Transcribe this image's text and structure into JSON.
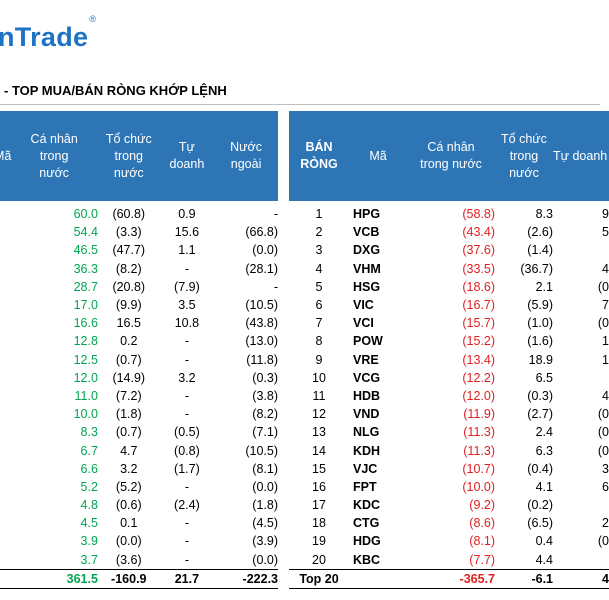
{
  "brand": {
    "logo_text": "nTrade",
    "registered_mark": "®"
  },
  "report_title": "- TOP MUA/BÁN RÒNG KHỚP LỆNH",
  "columns": {
    "ma": "Mã",
    "ca_nhan": [
      "Cá nhân",
      "trong",
      "nước"
    ],
    "ca_nhan_right": [
      "Cá nhân",
      "trong nước"
    ],
    "to_chuc": [
      "Tổ chức",
      "trong",
      "nước"
    ],
    "tu_doanh": [
      "Tự",
      "doanh"
    ],
    "tu_doanh_right": "Tự doanh",
    "nuoc_ngoai": [
      "Nước",
      "ngoài"
    ],
    "ban_rong": [
      "BÁN",
      "RÒNG"
    ]
  },
  "buy_rows": [
    {
      "ca_nhan": "60.0",
      "to_chuc": "(60.8)",
      "tu_doanh": "0.9",
      "nuoc_ngoai": "-"
    },
    {
      "ca_nhan": "54.4",
      "to_chuc": "(3.3)",
      "tu_doanh": "15.6",
      "nuoc_ngoai": "(66.8)"
    },
    {
      "ca_nhan": "46.5",
      "to_chuc": "(47.7)",
      "tu_doanh": "1.1",
      "nuoc_ngoai": "(0.0)"
    },
    {
      "ca_nhan": "36.3",
      "to_chuc": "(8.2)",
      "tu_doanh": "-",
      "nuoc_ngoai": "(28.1)"
    },
    {
      "ca_nhan": "28.7",
      "to_chuc": "(20.8)",
      "tu_doanh": "(7.9)",
      "nuoc_ngoai": "-"
    },
    {
      "ca_nhan": "17.0",
      "to_chuc": "(9.9)",
      "tu_doanh": "3.5",
      "nuoc_ngoai": "(10.5)"
    },
    {
      "ca_nhan": "16.6",
      "to_chuc": "16.5",
      "tu_doanh": "10.8",
      "nuoc_ngoai": "(43.8)"
    },
    {
      "ca_nhan": "12.8",
      "to_chuc": "0.2",
      "tu_doanh": "-",
      "nuoc_ngoai": "(13.0)"
    },
    {
      "ca_nhan": "12.5",
      "to_chuc": "(0.7)",
      "tu_doanh": "-",
      "nuoc_ngoai": "(11.8)"
    },
    {
      "ca_nhan": "12.0",
      "to_chuc": "(14.9)",
      "tu_doanh": "3.2",
      "nuoc_ngoai": "(0.3)"
    },
    {
      "ca_nhan": "11.0",
      "to_chuc": "(7.2)",
      "tu_doanh": "-",
      "nuoc_ngoai": "(3.8)"
    },
    {
      "ca_nhan": "10.0",
      "to_chuc": "(1.8)",
      "tu_doanh": "-",
      "nuoc_ngoai": "(8.2)"
    },
    {
      "ca_nhan": "8.3",
      "to_chuc": "(0.7)",
      "tu_doanh": "(0.5)",
      "nuoc_ngoai": "(7.1)"
    },
    {
      "ca_nhan": "6.7",
      "to_chuc": "4.7",
      "tu_doanh": "(0.8)",
      "nuoc_ngoai": "(10.5)"
    },
    {
      "ca_nhan": "6.6",
      "to_chuc": "3.2",
      "tu_doanh": "(1.7)",
      "nuoc_ngoai": "(8.1)"
    },
    {
      "ca_nhan": "5.2",
      "to_chuc": "(5.2)",
      "tu_doanh": "-",
      "nuoc_ngoai": "(0.0)"
    },
    {
      "ca_nhan": "4.8",
      "to_chuc": "(0.6)",
      "tu_doanh": "(2.4)",
      "nuoc_ngoai": "(1.8)"
    },
    {
      "ca_nhan": "4.5",
      "to_chuc": "0.1",
      "tu_doanh": "-",
      "nuoc_ngoai": "(4.5)"
    },
    {
      "ca_nhan": "3.9",
      "to_chuc": "(0.0)",
      "tu_doanh": "-",
      "nuoc_ngoai": "(3.9)"
    },
    {
      "ca_nhan": "3.7",
      "to_chuc": "(3.6)",
      "tu_doanh": "-",
      "nuoc_ngoai": "(0.0)"
    }
  ],
  "buy_total": {
    "ca_nhan": "361.5",
    "to_chuc": "-160.9",
    "tu_doanh": "21.7",
    "nuoc_ngoai": "-222.3"
  },
  "sell_rows": [
    {
      "rank": "1",
      "ma": "HPG",
      "ca_nhan": "(58.8)",
      "to_chuc": "8.3",
      "tu_doanh": "9"
    },
    {
      "rank": "2",
      "ma": "VCB",
      "ca_nhan": "(43.4)",
      "to_chuc": "(2.6)",
      "tu_doanh": "5"
    },
    {
      "rank": "3",
      "ma": "DXG",
      "ca_nhan": "(37.6)",
      "to_chuc": "(1.4)",
      "tu_doanh": ""
    },
    {
      "rank": "4",
      "ma": "VHM",
      "ca_nhan": "(33.5)",
      "to_chuc": "(36.7)",
      "tu_doanh": "4"
    },
    {
      "rank": "5",
      "ma": "HSG",
      "ca_nhan": "(18.6)",
      "to_chuc": "2.1",
      "tu_doanh": "(0"
    },
    {
      "rank": "6",
      "ma": "VIC",
      "ca_nhan": "(16.7)",
      "to_chuc": "(5.9)",
      "tu_doanh": "7"
    },
    {
      "rank": "7",
      "ma": "VCI",
      "ca_nhan": "(15.7)",
      "to_chuc": "(1.0)",
      "tu_doanh": "(0"
    },
    {
      "rank": "8",
      "ma": "POW",
      "ca_nhan": "(15.2)",
      "to_chuc": "(1.6)",
      "tu_doanh": "1"
    },
    {
      "rank": "9",
      "ma": "VRE",
      "ca_nhan": "(13.4)",
      "to_chuc": "18.9",
      "tu_doanh": "1"
    },
    {
      "rank": "10",
      "ma": "VCG",
      "ca_nhan": "(12.2)",
      "to_chuc": "6.5",
      "tu_doanh": ""
    },
    {
      "rank": "11",
      "ma": "HDB",
      "ca_nhan": "(12.0)",
      "to_chuc": "(0.3)",
      "tu_doanh": "4"
    },
    {
      "rank": "12",
      "ma": "VND",
      "ca_nhan": "(11.9)",
      "to_chuc": "(2.7)",
      "tu_doanh": "(0"
    },
    {
      "rank": "13",
      "ma": "NLG",
      "ca_nhan": "(11.3)",
      "to_chuc": "2.4",
      "tu_doanh": "(0"
    },
    {
      "rank": "14",
      "ma": "KDH",
      "ca_nhan": "(11.3)",
      "to_chuc": "6.3",
      "tu_doanh": "(0"
    },
    {
      "rank": "15",
      "ma": "VJC",
      "ca_nhan": "(10.7)",
      "to_chuc": "(0.4)",
      "tu_doanh": "3"
    },
    {
      "rank": "16",
      "ma": "FPT",
      "ca_nhan": "(10.0)",
      "to_chuc": "4.1",
      "tu_doanh": "6"
    },
    {
      "rank": "17",
      "ma": "KDC",
      "ca_nhan": "(9.2)",
      "to_chuc": "(0.2)",
      "tu_doanh": ""
    },
    {
      "rank": "18",
      "ma": "CTG",
      "ca_nhan": "(8.6)",
      "to_chuc": "(6.5)",
      "tu_doanh": "2"
    },
    {
      "rank": "19",
      "ma": "HDG",
      "ca_nhan": "(8.1)",
      "to_chuc": "0.4",
      "tu_doanh": "(0"
    },
    {
      "rank": "20",
      "ma": "KBC",
      "ca_nhan": "(7.7)",
      "to_chuc": "4.4",
      "tu_doanh": ""
    }
  ],
  "sell_total": {
    "label": "Top 20",
    "ca_nhan": "-365.7",
    "to_chuc": "-6.1",
    "tu_doanh": "4"
  }
}
